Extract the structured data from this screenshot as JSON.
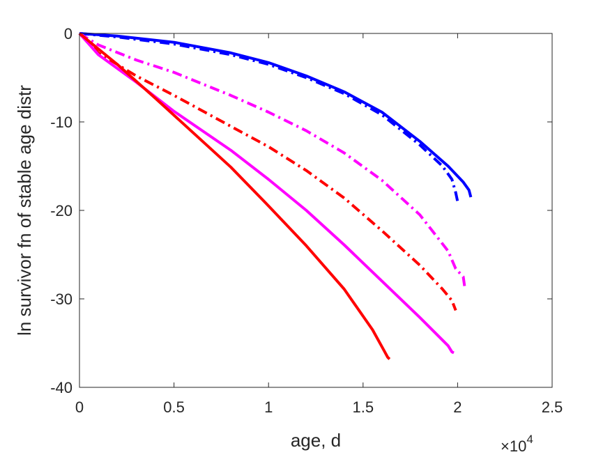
{
  "chart_data": {
    "type": "line",
    "title": "",
    "xlabel": "age, d",
    "ylabel": "ln survivor fn of stable age distr",
    "x_multiplier_base": "×10",
    "x_multiplier_exp": "4",
    "xlim": [
      0,
      25000
    ],
    "ylim": [
      -40,
      0
    ],
    "xticks": [
      0,
      5000,
      10000,
      15000,
      20000,
      25000
    ],
    "xtick_labels": [
      "0",
      "0.5",
      "1",
      "1.5",
      "2",
      "2.5"
    ],
    "yticks": [
      0,
      -10,
      -20,
      -30,
      -40
    ],
    "ytick_labels": [
      "0",
      "-10",
      "-20",
      "-30",
      "-40"
    ],
    "grid": false,
    "series": [
      {
        "color": "#0000ff",
        "style": "solid",
        "x": [
          0,
          2000,
          5000,
          8000,
          10000,
          12000,
          14000,
          16000,
          18000,
          19500,
          20300,
          20600,
          20700
        ],
        "y": [
          0,
          -0.3,
          -1.0,
          -2.2,
          -3.3,
          -4.8,
          -6.6,
          -8.9,
          -12.2,
          -15.0,
          -16.8,
          -17.7,
          -18.5
        ]
      },
      {
        "color": "#0000ff",
        "style": "dashdot",
        "x": [
          0,
          2000,
          5000,
          8000,
          10000,
          12000,
          14000,
          16000,
          18000,
          19200,
          19700,
          19900,
          20000
        ],
        "y": [
          0,
          -0.4,
          -1.2,
          -2.4,
          -3.5,
          -5.0,
          -6.8,
          -9.2,
          -12.6,
          -15.0,
          -16.5,
          -18.0,
          -19.0
        ]
      },
      {
        "color": "#ff00ff",
        "style": "dashdot",
        "x": [
          0,
          1000,
          3000,
          5000,
          8000,
          10000,
          12000,
          14000,
          16000,
          18000,
          19500,
          19900,
          20300,
          20400
        ],
        "y": [
          0,
          -1.3,
          -3.0,
          -4.4,
          -7.0,
          -8.9,
          -11.0,
          -13.5,
          -16.6,
          -20.5,
          -24.6,
          -26.6,
          -27.5,
          -29.0
        ]
      },
      {
        "color": "#ff0000",
        "style": "dashdot",
        "x": [
          0,
          1000,
          3000,
          5000,
          8000,
          10000,
          12000,
          14000,
          16000,
          18000,
          19200,
          19700,
          19900
        ],
        "y": [
          0,
          -2.2,
          -4.8,
          -7.0,
          -10.5,
          -12.8,
          -15.5,
          -18.6,
          -22.3,
          -26.2,
          -28.9,
          -30.2,
          -31.3
        ]
      },
      {
        "color": "#ff00ff",
        "style": "solid",
        "x": [
          0,
          1000,
          3000,
          5000,
          8000,
          10000,
          12000,
          14000,
          16000,
          18000,
          19500,
          19700,
          19800
        ],
        "y": [
          0,
          -2.4,
          -5.5,
          -8.8,
          -13.2,
          -16.5,
          -20.0,
          -23.9,
          -28.0,
          -32.1,
          -35.3,
          -36.0,
          -36.1
        ]
      },
      {
        "color": "#ff0000",
        "style": "solid",
        "x": [
          0,
          2000,
          4000,
          6000,
          8000,
          10000,
          12000,
          14000,
          15500,
          16100,
          16300,
          16400
        ],
        "y": [
          0,
          -3.5,
          -7.3,
          -11.2,
          -15.1,
          -19.5,
          -24.0,
          -28.9,
          -33.5,
          -35.8,
          -36.6,
          -36.8
        ]
      }
    ]
  }
}
